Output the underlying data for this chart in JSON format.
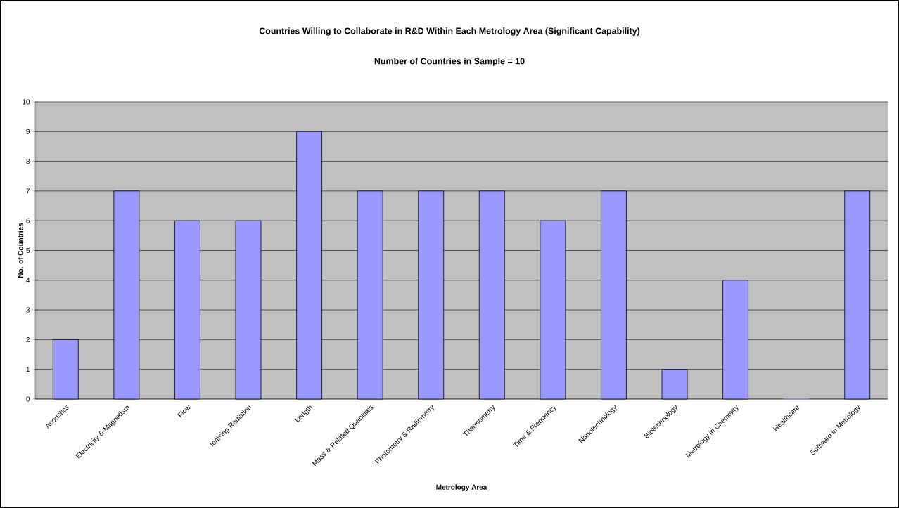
{
  "chart_data": {
    "type": "bar",
    "title": "Countries Willing to Collaborate in R&D Within Each Metrology Area (Significant Capability)",
    "subtitle": "Number of Countries in Sample = 10",
    "xlabel": "Metrology Area",
    "ylabel": "No. of Countries",
    "categories": [
      "Acoustics",
      "Electricity & Magnetism",
      "Flow",
      "Ionising Radiation",
      "Length",
      "Mass & Related Quantities",
      "Photometry & Radiometry",
      "Thermometry",
      "Time & Frequency",
      "Nanotechnology",
      "Biotechnology",
      "Metrology in Chemistry",
      "Healthcare",
      "Software in Metrology"
    ],
    "values": [
      2,
      7,
      6,
      6,
      9,
      7,
      7,
      7,
      6,
      7,
      1,
      4,
      0,
      7
    ],
    "color": "#9999ff",
    "ylim": [
      0,
      10
    ],
    "yticks": [
      0,
      1,
      2,
      3,
      4,
      5,
      6,
      7,
      8,
      9,
      10
    ],
    "grid": "y"
  }
}
